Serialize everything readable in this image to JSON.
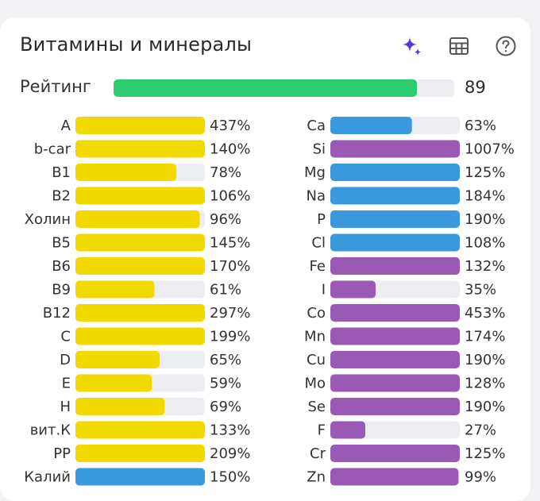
{
  "header": {
    "title": "Витамины и минералы",
    "icons": [
      "sparkle-icon",
      "table-icon",
      "help-icon"
    ]
  },
  "rating": {
    "label": "Рейтинг",
    "value": 89,
    "max": 100
  },
  "colors": {
    "green": "#2ecc71",
    "yellow": "#f2d900",
    "blue": "#3a98dc",
    "purple": "#9b59b6",
    "track": "#eceef1",
    "accent": "#5b36d6"
  },
  "chart_data": {
    "type": "bar",
    "orientation": "horizontal",
    "scale_max_percent": 100,
    "columns": [
      {
        "name": "vitamins",
        "items": [
          {
            "label": "A",
            "value": 437,
            "display": "437%",
            "color": "yellow"
          },
          {
            "label": "b-car",
            "value": 140,
            "display": "140%",
            "color": "yellow"
          },
          {
            "label": "B1",
            "value": 78,
            "display": "78%",
            "color": "yellow"
          },
          {
            "label": "B2",
            "value": 106,
            "display": "106%",
            "color": "yellow"
          },
          {
            "label": "Холин",
            "value": 96,
            "display": "96%",
            "color": "yellow"
          },
          {
            "label": "B5",
            "value": 145,
            "display": "145%",
            "color": "yellow"
          },
          {
            "label": "B6",
            "value": 170,
            "display": "170%",
            "color": "yellow"
          },
          {
            "label": "B9",
            "value": 61,
            "display": "61%",
            "color": "yellow"
          },
          {
            "label": "B12",
            "value": 297,
            "display": "297%",
            "color": "yellow"
          },
          {
            "label": "C",
            "value": 199,
            "display": "199%",
            "color": "yellow"
          },
          {
            "label": "D",
            "value": 65,
            "display": "65%",
            "color": "yellow"
          },
          {
            "label": "E",
            "value": 59,
            "display": "59%",
            "color": "yellow"
          },
          {
            "label": "H",
            "value": 69,
            "display": "69%",
            "color": "yellow"
          },
          {
            "label": "вит.К",
            "value": 133,
            "display": "133%",
            "color": "yellow"
          },
          {
            "label": "PP",
            "value": 209,
            "display": "209%",
            "color": "yellow"
          },
          {
            "label": "Калий",
            "value": 150,
            "display": "150%",
            "color": "blue"
          }
        ]
      },
      {
        "name": "minerals",
        "items": [
          {
            "label": "Ca",
            "value": 63,
            "display": "63%",
            "color": "blue"
          },
          {
            "label": "Si",
            "value": 1007,
            "display": "1007%",
            "color": "purple"
          },
          {
            "label": "Mg",
            "value": 125,
            "display": "125%",
            "color": "blue"
          },
          {
            "label": "Na",
            "value": 184,
            "display": "184%",
            "color": "blue"
          },
          {
            "label": "P",
            "value": 190,
            "display": "190%",
            "color": "blue"
          },
          {
            "label": "Cl",
            "value": 108,
            "display": "108%",
            "color": "blue"
          },
          {
            "label": "Fe",
            "value": 132,
            "display": "132%",
            "color": "purple"
          },
          {
            "label": "I",
            "value": 35,
            "display": "35%",
            "color": "purple"
          },
          {
            "label": "Co",
            "value": 453,
            "display": "453%",
            "color": "purple"
          },
          {
            "label": "Mn",
            "value": 174,
            "display": "174%",
            "color": "purple"
          },
          {
            "label": "Cu",
            "value": 190,
            "display": "190%",
            "color": "purple"
          },
          {
            "label": "Mo",
            "value": 128,
            "display": "128%",
            "color": "purple"
          },
          {
            "label": "Se",
            "value": 190,
            "display": "190%",
            "color": "purple"
          },
          {
            "label": "F",
            "value": 27,
            "display": "27%",
            "color": "purple"
          },
          {
            "label": "Cr",
            "value": 125,
            "display": "125%",
            "color": "purple"
          },
          {
            "label": "Zn",
            "value": 99,
            "display": "99%",
            "color": "purple"
          }
        ]
      }
    ]
  }
}
